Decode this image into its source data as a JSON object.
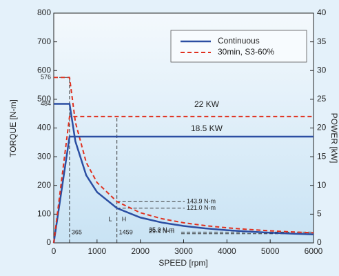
{
  "chart_data": {
    "type": "line",
    "x_label": "SPEED [rpm]",
    "y_label": "TORQUE [N-m]",
    "y2_label": "POWER [kW]",
    "xlim": [
      0,
      6000
    ],
    "xticks": [
      0,
      1000,
      2000,
      3000,
      4000,
      5000,
      6000
    ],
    "ylim": [
      0,
      800
    ],
    "yticks": [
      0,
      100,
      200,
      300,
      400,
      500,
      600,
      700,
      800
    ],
    "y2lim": [
      0,
      40
    ],
    "y2ticks": [
      0,
      5,
      10,
      15,
      20,
      25,
      30,
      35,
      40
    ],
    "y_markers": [
      576,
      484
    ],
    "x_markers": [
      365,
      1459
    ],
    "legend": "upper right",
    "series": [
      {
        "name": "Continuous",
        "color": "#2b4ea2",
        "dashed": false,
        "x": [
          0,
          365,
          500,
          750,
          1000,
          1459,
          2000,
          2500,
          3000,
          3500,
          4000,
          4500,
          5000,
          5500,
          6000
        ],
        "values": [
          484,
          484,
          353.3,
          235.5,
          176.7,
          121.0,
          88.3,
          70.7,
          58.9,
          50.5,
          44.2,
          39.3,
          35.3,
          32.1,
          29.4
        ]
      },
      {
        "name": "30min, S3-60%",
        "color": "#e0301e",
        "dashed": true,
        "x": [
          0,
          365,
          500,
          750,
          1000,
          1459,
          2000,
          2500,
          3000,
          3500,
          4000,
          4500,
          5000,
          5500,
          6000
        ],
        "values": [
          576,
          576,
          420.2,
          280.1,
          210.1,
          143.9,
          105.0,
          84.0,
          70.0,
          60.0,
          52.5,
          46.7,
          42.0,
          38.2,
          35.0
        ]
      },
      {
        "color": "#2b4ea2",
        "dashed": false,
        "axis": "y2",
        "x": [
          0,
          365,
          6000
        ],
        "values": [
          0,
          18.5,
          18.5
        ]
      },
      {
        "color": "#e0301e",
        "dashed": true,
        "axis": "y2",
        "x": [
          0,
          365,
          6000
        ],
        "values": [
          0,
          22,
          22
        ]
      }
    ],
    "annotations": [
      "22 KW",
      "18.5 KW",
      "143.9 N-m",
      "121.0 N-m",
      "35.0 N-m",
      "29.4 N-m",
      "L",
      "H"
    ]
  }
}
